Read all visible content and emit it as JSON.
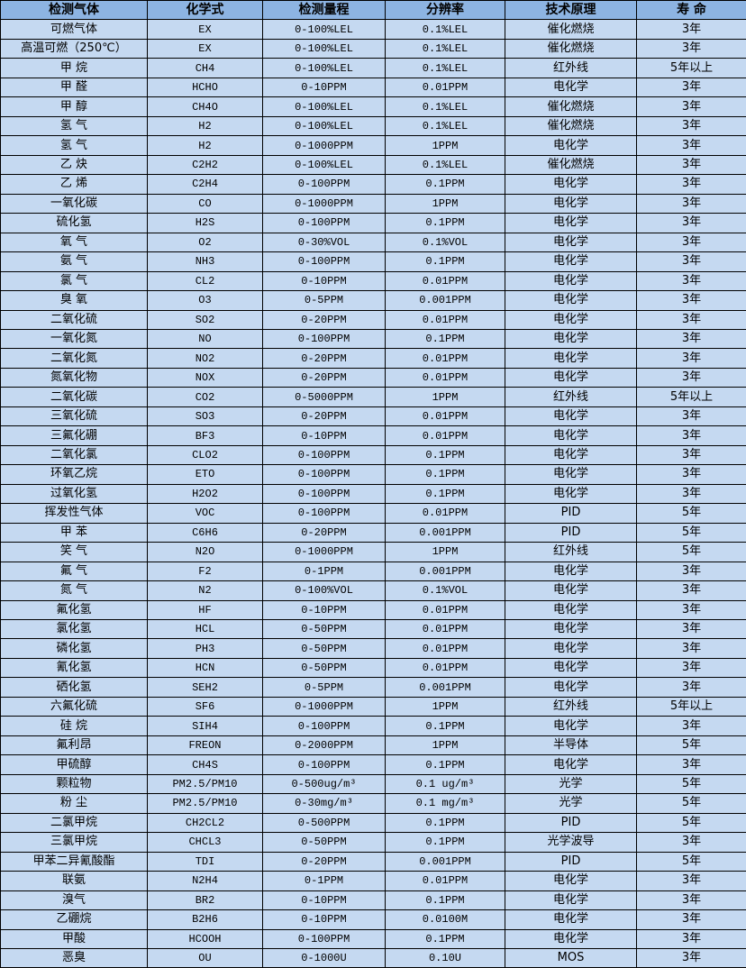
{
  "colors": {
    "header_bg": "#8db4e2",
    "row_bg": "#c5d9f1",
    "border": "#000000"
  },
  "headers": [
    "检测气体",
    "化学式",
    "检测量程",
    "分辨率",
    "技术原理",
    "寿 命"
  ],
  "rows": [
    [
      "可燃气体",
      "EX",
      "0-100%LEL",
      "0.1%LEL",
      "催化燃烧",
      "3年"
    ],
    [
      "高温可燃（250℃）",
      "EX",
      "0-100%LEL",
      "0.1%LEL",
      "催化燃烧",
      "3年"
    ],
    [
      "甲 烷",
      "CH4",
      "0-100%LEL",
      "0.1%LEL",
      "红外线",
      "5年以上"
    ],
    [
      "甲 醛",
      "HCHO",
      "0-10PPM",
      "0.01PPM",
      "电化学",
      "3年"
    ],
    [
      "甲 醇",
      "CH4O",
      "0-100%LEL",
      "0.1%LEL",
      "催化燃烧",
      "3年"
    ],
    [
      "氢 气",
      "H2",
      "0-100%LEL",
      "0.1%LEL",
      "催化燃烧",
      "3年"
    ],
    [
      "氢 气",
      "H2",
      "0-1000PPM",
      "1PPM",
      "电化学",
      "3年"
    ],
    [
      "乙 炔",
      "C2H2",
      "0-100%LEL",
      "0.1%LEL",
      "催化燃烧",
      "3年"
    ],
    [
      "乙 烯",
      "C2H4",
      "0-100PPM",
      "0.1PPM",
      "电化学",
      "3年"
    ],
    [
      "一氧化碳",
      "CO",
      "0-1000PPM",
      "1PPM",
      "电化学",
      "3年"
    ],
    [
      "硫化氢",
      "H2S",
      "0-100PPM",
      "0.1PPM",
      "电化学",
      "3年"
    ],
    [
      "氧 气",
      "O2",
      "0-30%VOL",
      "0.1%VOL",
      "电化学",
      "3年"
    ],
    [
      "氨 气",
      "NH3",
      "0-100PPM",
      "0.1PPM",
      "电化学",
      "3年"
    ],
    [
      "氯 气",
      "CL2",
      "0-10PPM",
      "0.01PPM",
      "电化学",
      "3年"
    ],
    [
      "臭 氧",
      "O3",
      "0-5PPM",
      "0.001PPM",
      "电化学",
      "3年"
    ],
    [
      "二氧化硫",
      "SO2",
      "0-20PPM",
      "0.01PPM",
      "电化学",
      "3年"
    ],
    [
      "一氧化氮",
      "NO",
      "0-100PPM",
      "0.1PPM",
      "电化学",
      "3年"
    ],
    [
      "二氧化氮",
      "NO2",
      "0-20PPM",
      "0.01PPM",
      "电化学",
      "3年"
    ],
    [
      "氮氧化物",
      "NOX",
      "0-20PPM",
      "0.01PPM",
      "电化学",
      "3年"
    ],
    [
      "二氧化碳",
      "CO2",
      "0-5000PPM",
      "1PPM",
      "红外线",
      "5年以上"
    ],
    [
      "三氧化硫",
      "SO3",
      "0-20PPM",
      "0.01PPM",
      "电化学",
      "3年"
    ],
    [
      "三氟化硼",
      "BF3",
      "0-10PPM",
      "0.01PPM",
      "电化学",
      "3年"
    ],
    [
      "二氧化氯",
      "CLO2",
      "0-100PPM",
      "0.1PPM",
      "电化学",
      "3年"
    ],
    [
      "环氧乙烷",
      "ETO",
      "0-100PPM",
      "0.1PPM",
      "电化学",
      "3年"
    ],
    [
      "过氧化氢",
      "H2O2",
      "0-100PPM",
      "0.1PPM",
      "电化学",
      "3年"
    ],
    [
      "挥发性气体",
      "VOC",
      "0-100PPM",
      "0.01PPM",
      "PID",
      "5年"
    ],
    [
      "甲 苯",
      "C6H6",
      "0-20PPM",
      "0.001PPM",
      "PID",
      "5年"
    ],
    [
      "笑 气",
      "N2O",
      "0-1000PPM",
      "1PPM",
      "红外线",
      "5年"
    ],
    [
      "氟 气",
      "F2",
      "0-1PPM",
      "0.001PPM",
      "电化学",
      "3年"
    ],
    [
      "氮 气",
      "N2",
      "0-100%VOL",
      "0.1%VOL",
      "电化学",
      "3年"
    ],
    [
      "氟化氢",
      "HF",
      "0-10PPM",
      "0.01PPM",
      "电化学",
      "3年"
    ],
    [
      "氯化氢",
      "HCL",
      "0-50PPM",
      "0.01PPM",
      "电化学",
      "3年"
    ],
    [
      "磷化氢",
      "PH3",
      "0-50PPM",
      "0.01PPM",
      "电化学",
      "3年"
    ],
    [
      "氰化氢",
      "HCN",
      "0-50PPM",
      "0.01PPM",
      "电化学",
      "3年"
    ],
    [
      "硒化氢",
      "SEH2",
      "0-5PPM",
      "0.001PPM",
      "电化学",
      "3年"
    ],
    [
      "六氟化硫",
      "SF6",
      "0-1000PPM",
      "1PPM",
      "红外线",
      "5年以上"
    ],
    [
      "硅 烷",
      "SIH4",
      "0-100PPM",
      "0.1PPM",
      "电化学",
      "3年"
    ],
    [
      "氟利昂",
      "FREON",
      "0-2000PPM",
      "1PPM",
      "半导体",
      "5年"
    ],
    [
      "甲硫醇",
      "CH4S",
      "0-100PPM",
      "0.1PPM",
      "电化学",
      "3年"
    ],
    [
      "颗粒物",
      "PM2.5/PM10",
      "0-500ug/m³",
      "0.1 ug/m³",
      "光学",
      "5年"
    ],
    [
      "粉 尘",
      "PM2.5/PM10",
      "0-30mg/m³",
      "0.1 mg/m³",
      "光学",
      "5年"
    ],
    [
      "二氯甲烷",
      "CH2CL2",
      "0-500PPM",
      "0.1PPM",
      "PID",
      "5年"
    ],
    [
      "三氯甲烷",
      "CHCL3",
      "0-50PPM",
      "0.1PPM",
      "光学波导",
      "3年"
    ],
    [
      "甲苯二异氰酸酯",
      "TDI",
      "0-20PPM",
      "0.001PPM",
      "PID",
      "5年"
    ],
    [
      "联氨",
      "N2H4",
      "0-1PPM",
      "0.01PPM",
      "电化学",
      "3年"
    ],
    [
      "溴气",
      "BR2",
      "0-10PPM",
      "0.1PPM",
      "电化学",
      "3年"
    ],
    [
      "乙硼烷",
      "B2H6",
      "0-10PPM",
      "0.0100M",
      "电化学",
      "3年"
    ],
    [
      "甲酸",
      "HCOOH",
      "0-100PPM",
      "0.1PPM",
      "电化学",
      "3年"
    ],
    [
      "恶臭",
      "OU",
      "0-1000U",
      "0.10U",
      "MOS",
      "3年"
    ]
  ]
}
